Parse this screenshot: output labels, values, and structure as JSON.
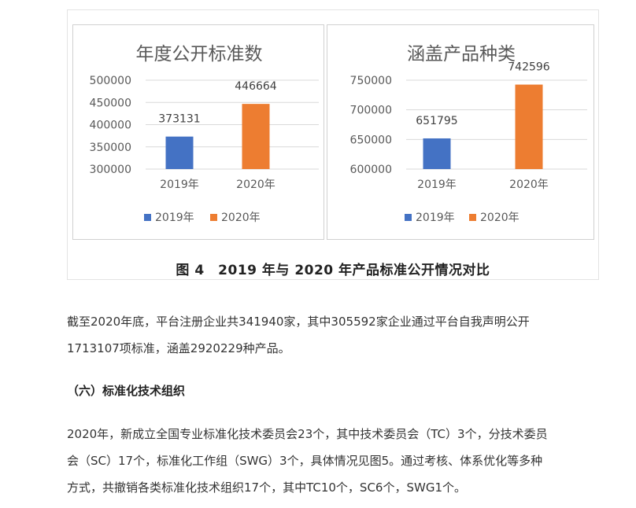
{
  "chart_data": [
    {
      "type": "bar",
      "title": "年度公开标准数",
      "categories": [
        "2019年",
        "2020年"
      ],
      "series": [
        {
          "name": "2019年",
          "values": [
            373131,
            null
          ]
        },
        {
          "name": "2020年",
          "values": [
            null,
            446664
          ]
        }
      ],
      "values": [
        373131,
        446664
      ],
      "labels": [
        "373131",
        "446664"
      ],
      "ylim": [
        300000,
        500000
      ],
      "yticks": [
        "300000",
        "350000",
        "400000",
        "450000",
        "500000"
      ],
      "grid": true,
      "legend": [
        "2019年",
        "2020年"
      ],
      "legend_position": "bottom",
      "xlabel": "",
      "ylabel": ""
    },
    {
      "type": "bar",
      "title": "涵盖产品种类",
      "categories": [
        "2019年",
        "2020年"
      ],
      "series": [
        {
          "name": "2019年",
          "values": [
            651795,
            null
          ]
        },
        {
          "name": "2020年",
          "values": [
            null,
            742596
          ]
        }
      ],
      "values": [
        651795,
        742596
      ],
      "labels": [
        "651795",
        "742596"
      ],
      "ylim": [
        600000,
        750000
      ],
      "yticks": [
        "600000",
        "650000",
        "700000",
        "750000"
      ],
      "grid": true,
      "legend": [
        "2019年",
        "2020年"
      ],
      "legend_position": "bottom",
      "xlabel": "",
      "ylabel": ""
    }
  ],
  "colors": {
    "series_2019": "#4472C4",
    "series_2020": "#ED7D31",
    "grid": "#d9d9d9",
    "text": "#595959"
  },
  "figure": {
    "caption": "图 4　2019 年与 2020 年产品标准公开情况对比"
  },
  "paragraph1": {
    "lines": [
      "截至2020年底，平台注册企业共341940家，其中305592家企业通过平台自我声明公开",
      "1713107项标准，涵盖2920229种产品。"
    ]
  },
  "section": {
    "title": "（六）标准化技术组织"
  },
  "paragraph2": {
    "lines": [
      "2020年，新成立全国专业标准化技术委员会23个，其中技术委员会（TC）3个，分技术委员",
      "会（SC）17个，标准化工作组（SWG）3个，具体情况见图5。通过考核、体系优化等多种",
      "方式，共撤销各类标准化技术组织17个，其中TC10个，SC6个，SWG1个。"
    ]
  }
}
